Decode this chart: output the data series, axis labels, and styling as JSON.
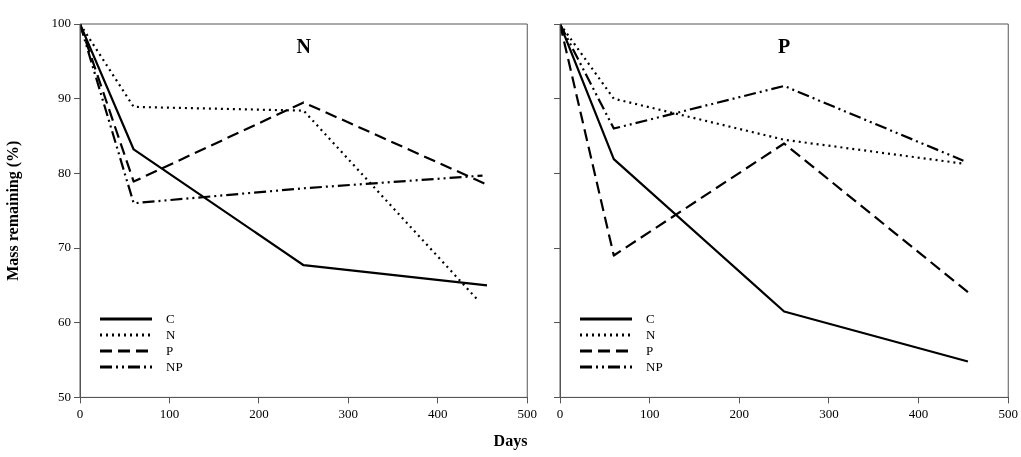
{
  "chart_data": [
    {
      "type": "line",
      "title": "N",
      "xlabel": "Days",
      "ylabel": "Mass remaining (%)",
      "x": [
        0,
        60,
        250,
        455
      ],
      "xlim": [
        0,
        500
      ],
      "xticks": [
        0,
        100,
        200,
        300,
        400,
        500
      ],
      "ylim": [
        50,
        100
      ],
      "yticks": [
        50,
        60,
        70,
        80,
        90,
        100
      ],
      "grid": false,
      "legend": "bottom left",
      "marker": "none",
      "series": [
        {
          "name": "C",
          "color": "#000000",
          "line_style": "solid",
          "values": [
            100,
            83.2,
            67.7,
            65.0
          ]
        },
        {
          "name": "N",
          "color": "#000000",
          "line_style": "dotted",
          "x": [
            0,
            60,
            250,
            445
          ],
          "values": [
            100,
            88.9,
            88.4,
            63.0
          ]
        },
        {
          "name": "P",
          "color": "#000000",
          "line_style": "dashed",
          "values": [
            100,
            78.9,
            89.5,
            78.5
          ]
        },
        {
          "name": "NP",
          "color": "#000000",
          "line_style": "dashdotdot",
          "x": [
            0,
            60,
            250,
            450
          ],
          "values": [
            100,
            76.0,
            78.0,
            79.7
          ]
        }
      ]
    },
    {
      "type": "line",
      "title": "P",
      "x": [
        0,
        60,
        250,
        455
      ],
      "xlim": [
        0,
        500
      ],
      "xticks": [
        0,
        100,
        200,
        300,
        400,
        500
      ],
      "ylim": [
        50,
        100
      ],
      "yticks": [
        50,
        60,
        70,
        80,
        90,
        100
      ],
      "tick_labels": "x",
      "grid": false,
      "legend": "bottom left",
      "marker": "none",
      "series": [
        {
          "name": "C",
          "color": "#000000",
          "line_style": "solid",
          "values": [
            100,
            81.9,
            61.5,
            54.8
          ]
        },
        {
          "name": "N",
          "color": "#000000",
          "line_style": "dotted",
          "x": [
            0,
            60,
            250,
            450
          ],
          "values": [
            100,
            90.0,
            84.5,
            81.3
          ]
        },
        {
          "name": "P",
          "color": "#000000",
          "line_style": "dashed",
          "values": [
            100,
            69.0,
            84.0,
            64.1
          ]
        },
        {
          "name": "NP",
          "color": "#000000",
          "line_style": "dashdotdot",
          "x": [
            0,
            60,
            250,
            450
          ],
          "values": [
            100,
            86.0,
            91.7,
            81.7
          ]
        }
      ]
    }
  ]
}
